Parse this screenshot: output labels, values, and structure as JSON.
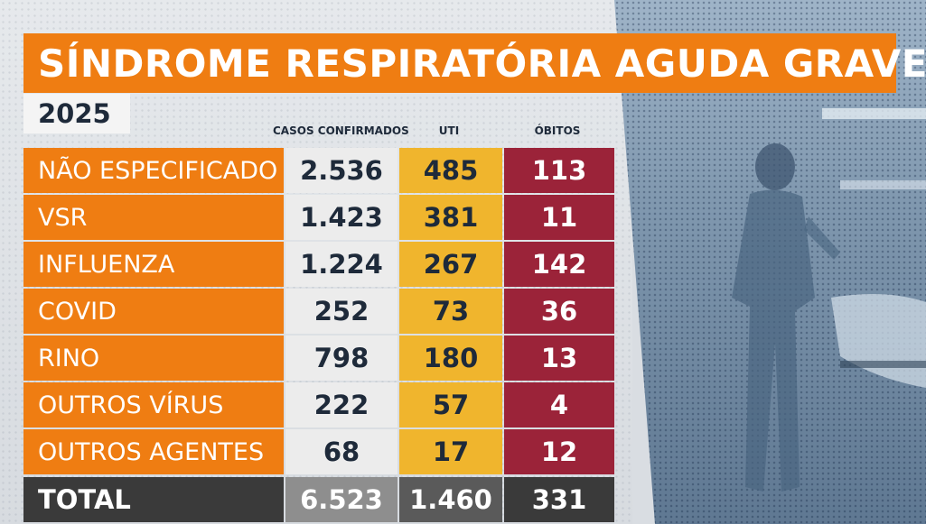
{
  "title": "SÍNDROME RESPIRATÓRIA AGUDA GRAVE",
  "year": "2025",
  "columns": {
    "casos": "CASOS CONFIRMADOS",
    "uti": "UTI",
    "obitos": "ÓBITOS"
  },
  "rows": [
    {
      "label": "NÃO ESPECIFICADO",
      "casos": "2.536",
      "uti": "485",
      "obitos": "113"
    },
    {
      "label": "VSR",
      "casos": "1.423",
      "uti": "381",
      "obitos": "11"
    },
    {
      "label": "INFLUENZA",
      "casos": "1.224",
      "uti": "267",
      "obitos": "142"
    },
    {
      "label": "COVID",
      "casos": "252",
      "uti": "73",
      "obitos": "36"
    },
    {
      "label": "RINO",
      "casos": "798",
      "uti": "180",
      "obitos": "13"
    },
    {
      "label": "OUTROS VÍRUS",
      "casos": "222",
      "uti": "57",
      "obitos": "4"
    },
    {
      "label": "OUTROS AGENTES",
      "casos": "68",
      "uti": "17",
      "obitos": "12"
    }
  ],
  "total": {
    "label": "TOTAL",
    "casos": "6.523",
    "uti": "1.460",
    "obitos": "331"
  },
  "colors": {
    "orange": "#ef7d12",
    "yellow": "#f0b52d",
    "crimson": "#9b2339",
    "dark": "#3a3a3a"
  }
}
